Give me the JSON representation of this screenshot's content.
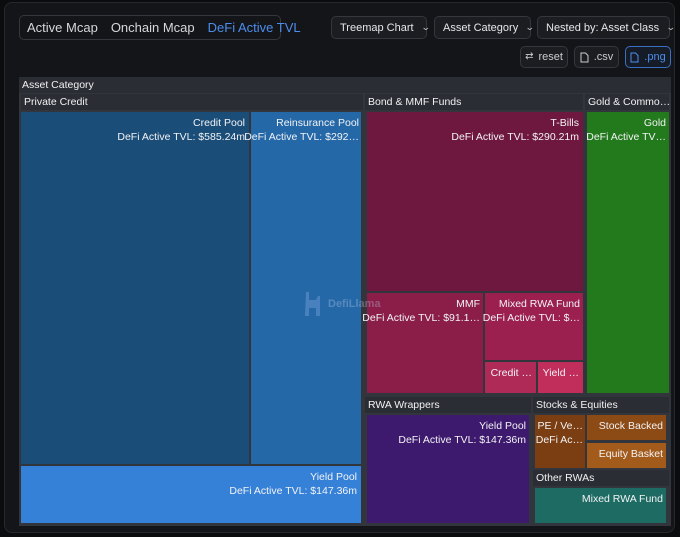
{
  "tabs": [
    {
      "label": "Active Mcap",
      "active": false
    },
    {
      "label": "Onchain Mcap",
      "active": false
    },
    {
      "label": "DeFi Active TVL",
      "active": true
    }
  ],
  "dropdowns": {
    "chart_type": "Treemap Chart",
    "category": "Asset Category",
    "nested_by": "Nested by: Asset Class"
  },
  "buttons": {
    "reset": "reset",
    "csv": ".csv",
    "png": ".png"
  },
  "watermark": "DefiLlama",
  "treemap": {
    "root_label": "Asset Category",
    "groups": {
      "private_credit": "Private Credit",
      "bond_mmf": "Bond & MMF Funds",
      "gold": "Gold & Commo…",
      "rwa_wrappers": "RWA Wrappers",
      "stocks": "Stocks & Equities",
      "other": "Other RWAs"
    },
    "leaves": {
      "credit_pool": {
        "name": "Credit Pool",
        "value": "DeFi Active TVL: $585.24m"
      },
      "reinsurance_pool": {
        "name": "Reinsurance Pool",
        "value": "DeFi Active TVL: $292…"
      },
      "yield_pool_pc": {
        "name": "Yield Pool",
        "value": "DeFi Active TVL: $147.36m"
      },
      "t_bills": {
        "name": "T-Bills",
        "value": "DeFi Active TVL: $290.21m"
      },
      "mmf": {
        "name": "MMF",
        "value": "DeFi Active TVL: $91.1…"
      },
      "mixed_rwa_fund_bond": {
        "name": "Mixed RWA Fund",
        "value": "DeFi Active TVL: $…"
      },
      "credit_small": {
        "name": "Credit …"
      },
      "yield_small": {
        "name": "Yield …"
      },
      "gold": {
        "name": "Gold",
        "value": "DeFi Active TV…"
      },
      "yield_pool_rwa": {
        "name": "Yield Pool",
        "value": "DeFi Active TVL: $147.36m"
      },
      "pe_ve": {
        "name": "PE / Ve…",
        "value": "DeFi Ac…"
      },
      "stock_backed": {
        "name": "Stock Backed"
      },
      "equity_basket": {
        "name": "Equity Basket"
      },
      "mixed_rwa_fund_other": {
        "name": "Mixed RWA Fund"
      }
    },
    "colors": {
      "credit_pool": "#1a4d78",
      "reinsurance_pool": "#2468a8",
      "yield_pool_pc": "#3581d8",
      "t_bills": "#6e1840",
      "mmf": "#8a1e48",
      "mixed_rwa_fund_bond": "#9b2050",
      "credit_small": "#b02a58",
      "yield_small": "#c22e5c",
      "gold": "#237a1d",
      "yield_pool_rwa": "#3e1a6e",
      "pe_ve": "#7a3e12",
      "stock_backed": "#8c4a14",
      "equity_basket": "#a35b1b",
      "mixed_rwa_fund_other": "#1d6b63"
    }
  }
}
